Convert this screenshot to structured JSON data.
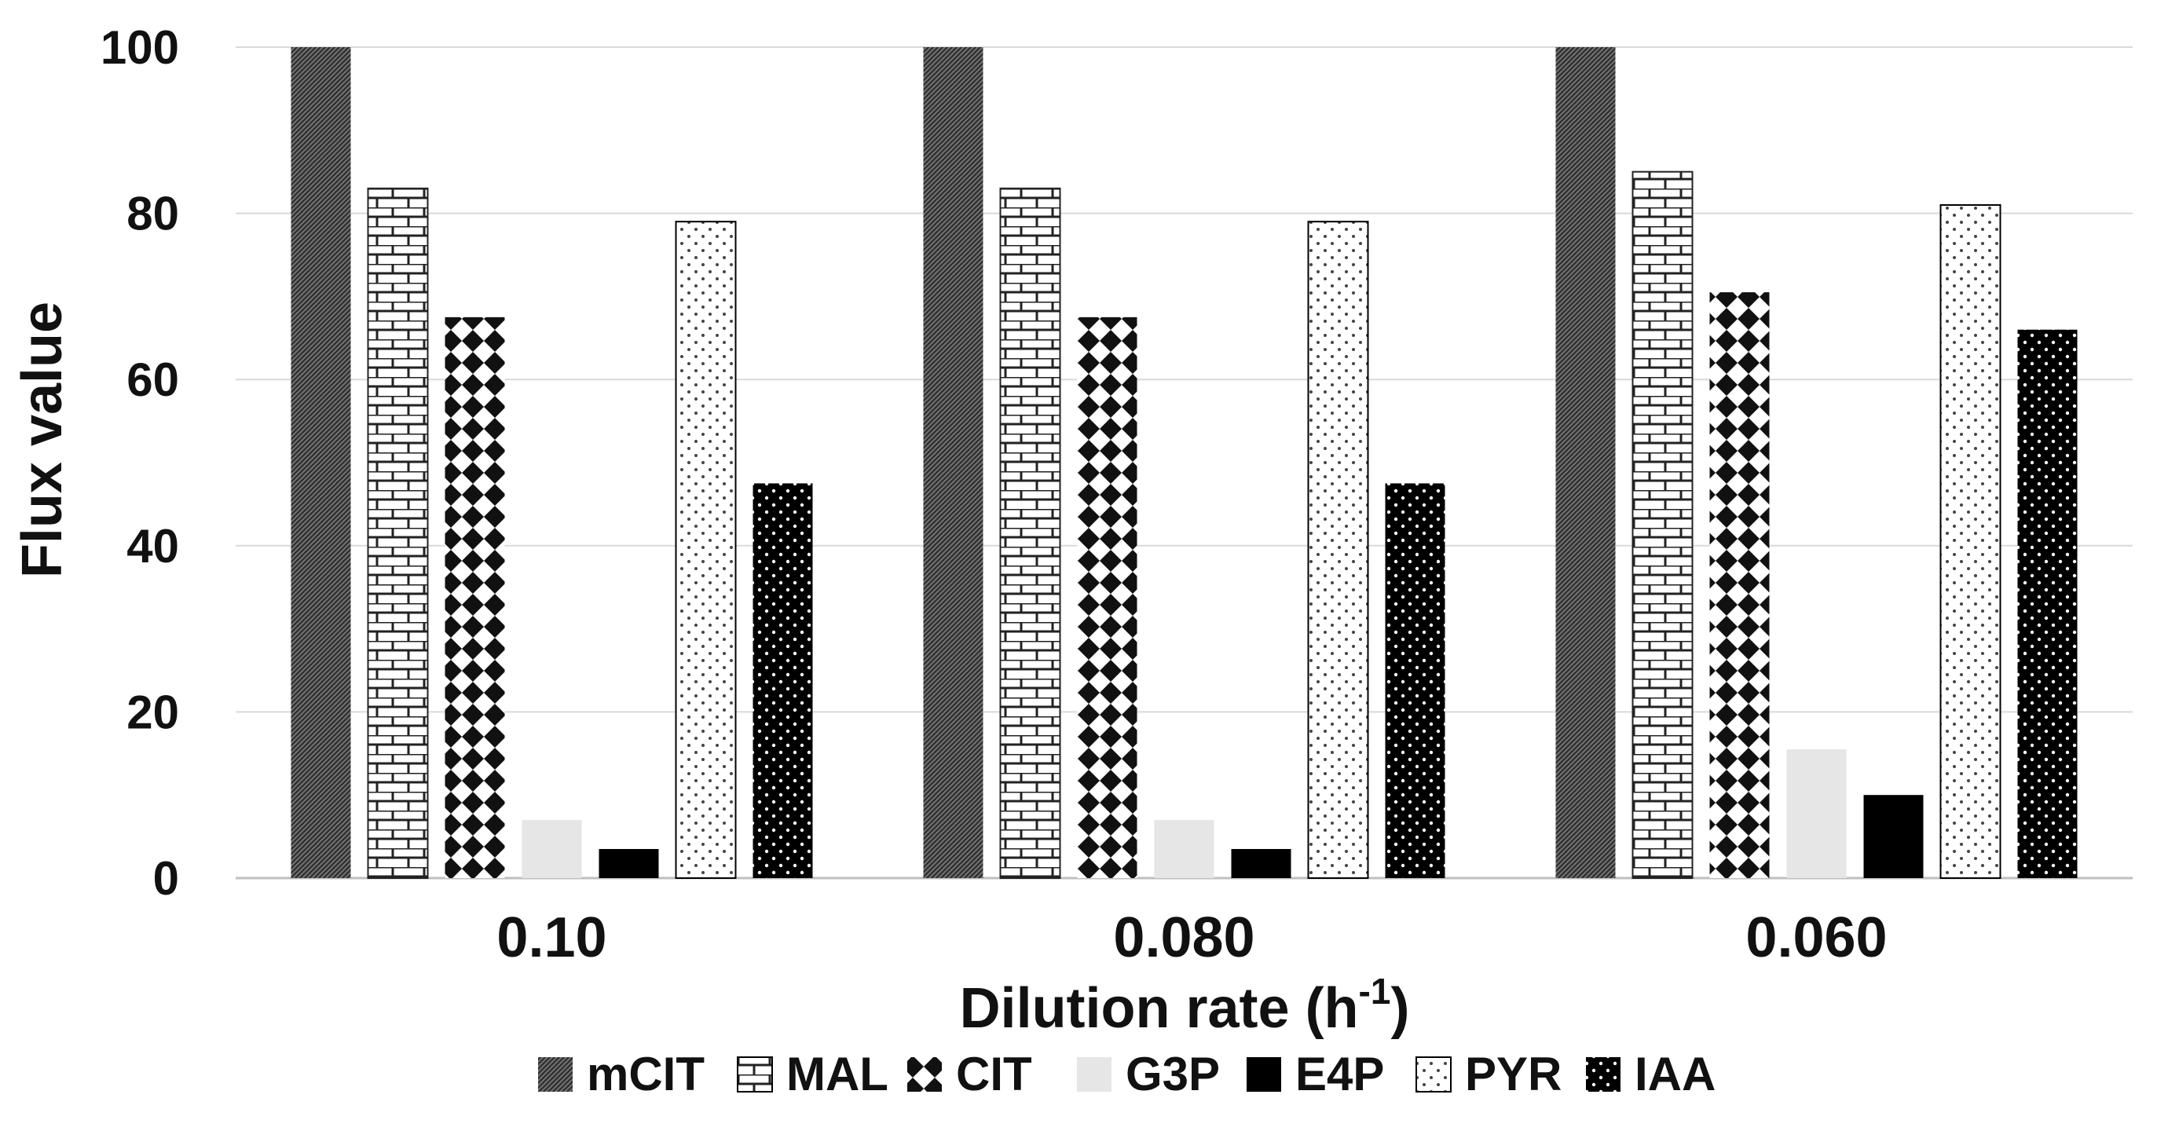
{
  "chart_data": {
    "type": "bar",
    "title": "",
    "xlabel": "Dilution rate (h",
    "xlabel_sup": "-1",
    "xlabel_close": ")",
    "ylabel": "Flux value",
    "ylim": [
      0,
      100
    ],
    "yticks": [
      "0",
      "20",
      "40",
      "60",
      "80",
      "100"
    ],
    "ytick_values": [
      0,
      20,
      40,
      60,
      80,
      100
    ],
    "grid": true,
    "legend_position": "bottom",
    "categories": [
      "0.10",
      "0.080",
      "0.060"
    ],
    "series": [
      {
        "name": "mCIT",
        "pattern": "dense-hatch",
        "values": [
          100,
          100,
          100
        ]
      },
      {
        "name": "MAL",
        "pattern": "brick",
        "values": [
          83,
          83,
          85
        ]
      },
      {
        "name": "CIT",
        "pattern": "diamond",
        "values": [
          67.5,
          67.5,
          70.5
        ]
      },
      {
        "name": "G3P",
        "pattern": "light-solid",
        "values": [
          7,
          7,
          15.5
        ]
      },
      {
        "name": "E4P",
        "pattern": "black-solid",
        "values": [
          3.5,
          3.5,
          10
        ]
      },
      {
        "name": "PYR",
        "pattern": "light-dots",
        "values": [
          79,
          79,
          81
        ]
      },
      {
        "name": "IAA",
        "pattern": "dark-dots",
        "values": [
          47.5,
          47.5,
          66
        ]
      }
    ],
    "colors": {
      "grid": "#d9d9d9",
      "axis": "#bfbfbf",
      "black": "#000000",
      "light_gray": "#e6e6e6",
      "dark_gray": "#555555"
    }
  }
}
